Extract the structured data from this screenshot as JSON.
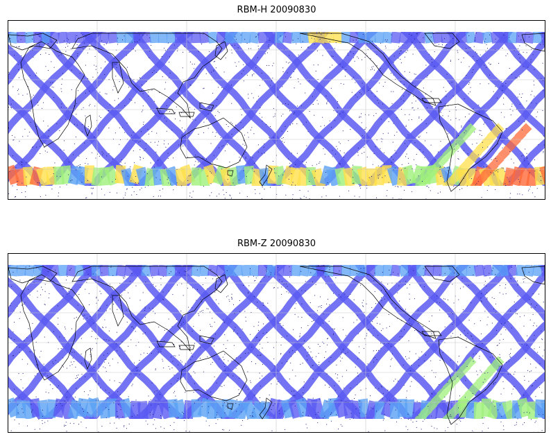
{
  "panels": [
    {
      "title": "RBM-H 20090830",
      "variant": "H"
    },
    {
      "title": "RBM-Z 20090830",
      "variant": "Z"
    }
  ],
  "colormap": {
    "name": "jet",
    "alpha": 0.6,
    "track_low": "#5a5af2",
    "track_mid": "#5aa0f5",
    "high_hot": "#ff6a3a",
    "high_warm": "#ffe04a",
    "high_green": "#9ff07a"
  },
  "map": {
    "projection": "cylindrical",
    "central_longitude": "~60E",
    "gridlines": true,
    "coastline_color": "#000000",
    "noise_dot_color": "#1b1b7a"
  }
}
